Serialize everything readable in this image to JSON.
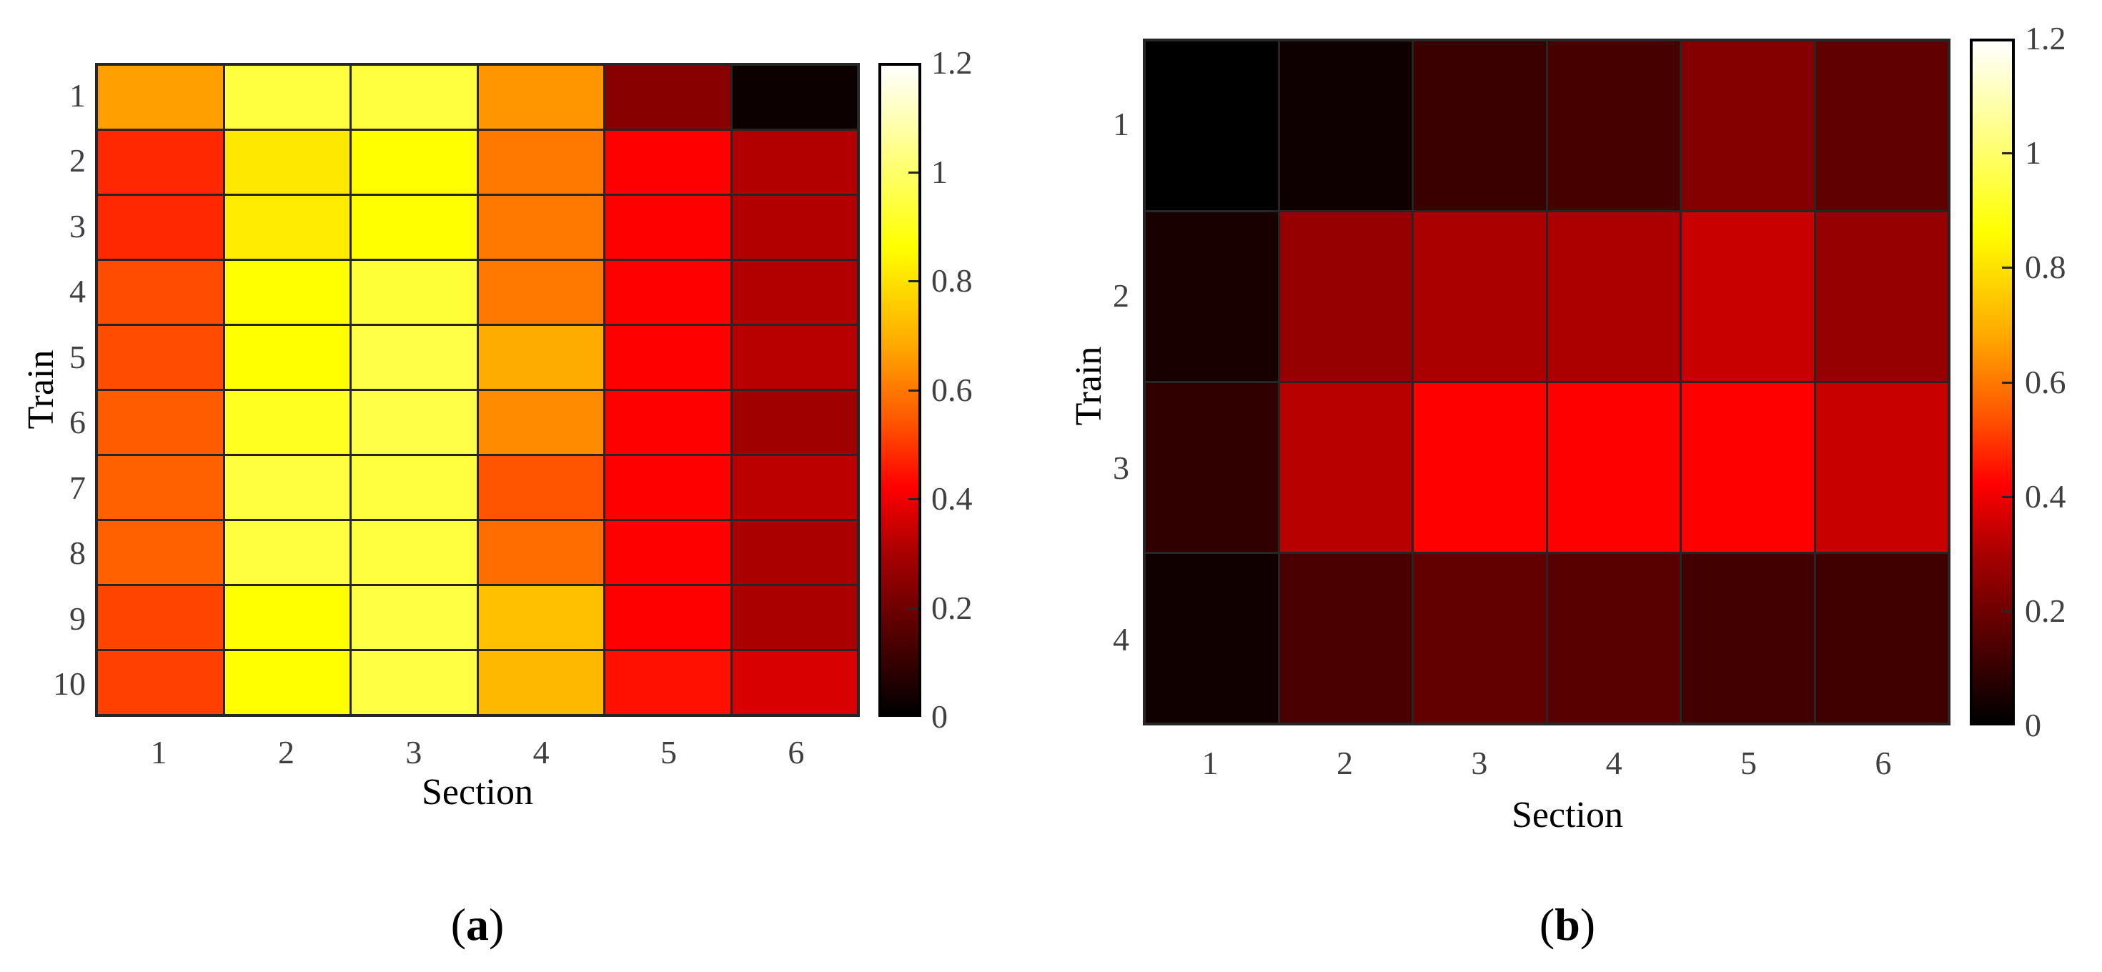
{
  "panels": [
    {
      "id": "a",
      "caption_open": "(",
      "caption_letter": "a",
      "caption_close": ")",
      "xlabel": "Section",
      "ylabel": "Train",
      "xticks": [
        "1",
        "2",
        "3",
        "4",
        "5",
        "6"
      ],
      "yticks": [
        "1",
        "2",
        "3",
        "4",
        "5",
        "6",
        "7",
        "8",
        "9",
        "10"
      ],
      "colorbar_ticks": [
        "0",
        "0.2",
        "0.4",
        "0.6",
        "0.8",
        "1",
        "1.2"
      ],
      "cell_colors": [
        [
          "#FFA000",
          "#FFFF40",
          "#FFFF40",
          "#FF9600",
          "#880000",
          "#0C0000"
        ],
        [
          "#FF2800",
          "#FFE800",
          "#FFFF00",
          "#FF7800",
          "#FF0000",
          "#B20000"
        ],
        [
          "#FF2800",
          "#FFEC00",
          "#FFFF00",
          "#FF7800",
          "#FF0000",
          "#B20000"
        ],
        [
          "#FF4C00",
          "#FFFF00",
          "#FFFF38",
          "#FF7800",
          "#FF0000",
          "#B20000"
        ],
        [
          "#FF4C00",
          "#FFFF00",
          "#FFFF48",
          "#FFAC00",
          "#FF0000",
          "#B80000"
        ],
        [
          "#FF5C00",
          "#FFFF20",
          "#FFFF48",
          "#FF8C00",
          "#FF0000",
          "#A00000"
        ],
        [
          "#FF6000",
          "#FFFF40",
          "#FFFF40",
          "#FF5400",
          "#FF0000",
          "#BC0000"
        ],
        [
          "#FF6000",
          "#FFFF40",
          "#FFFF40",
          "#FF6C00",
          "#FF0000",
          "#AA0000"
        ],
        [
          "#FF4400",
          "#FFFF00",
          "#FFFF44",
          "#FFC000",
          "#FF0000",
          "#AA0000"
        ],
        [
          "#FF4000",
          "#FFFF00",
          "#FFFF44",
          "#FFB800",
          "#FF1000",
          "#D80000"
        ]
      ]
    },
    {
      "id": "b",
      "caption_open": "(",
      "caption_letter": "b",
      "caption_close": ")",
      "xlabel": "Section",
      "ylabel": "Train",
      "xticks": [
        "1",
        "2",
        "3",
        "4",
        "5",
        "6"
      ],
      "yticks": [
        "1",
        "2",
        "3",
        "4"
      ],
      "colorbar_ticks": [
        "0",
        "0.2",
        "0.4",
        "0.6",
        "0.8",
        "1",
        "1.2"
      ],
      "cell_colors": [
        [
          "#000000",
          "#0E0000",
          "#3A0000",
          "#460000",
          "#840000",
          "#600000"
        ],
        [
          "#180000",
          "#960000",
          "#AA0000",
          "#AC0000",
          "#C80000",
          "#960000"
        ],
        [
          "#300000",
          "#B80000",
          "#FF0000",
          "#FF0000",
          "#FF0000",
          "#C80000"
        ],
        [
          "#100000",
          "#4A0000",
          "#620000",
          "#580000",
          "#420000",
          "#400000"
        ]
      ]
    }
  ],
  "chart_data": [
    {
      "type": "heatmap",
      "title": "(a)",
      "xlabel": "Section",
      "ylabel": "Train",
      "x": [
        1,
        2,
        3,
        4,
        5,
        6
      ],
      "y": [
        1,
        2,
        3,
        4,
        5,
        6,
        7,
        8,
        9,
        10
      ],
      "colormap": "hot",
      "clim": [
        0,
        1.2
      ],
      "colorbar_ticks": [
        0,
        0.2,
        0.4,
        0.6,
        0.8,
        1,
        1.2
      ],
      "values": [
        [
          0.73,
          0.98,
          0.98,
          0.71,
          0.24,
          0.02
        ],
        [
          0.52,
          0.86,
          0.9,
          0.66,
          0.45,
          0.31
        ],
        [
          0.52,
          0.87,
          0.9,
          0.66,
          0.45,
          0.31
        ],
        [
          0.58,
          0.9,
          0.97,
          0.66,
          0.45,
          0.31
        ],
        [
          0.58,
          0.9,
          0.98,
          0.76,
          0.45,
          0.33
        ],
        [
          0.61,
          0.94,
          0.98,
          0.7,
          0.45,
          0.28
        ],
        [
          0.62,
          0.98,
          0.98,
          0.6,
          0.45,
          0.33
        ],
        [
          0.62,
          0.98,
          0.98,
          0.64,
          0.45,
          0.3
        ],
        [
          0.57,
          0.9,
          0.98,
          0.79,
          0.45,
          0.3
        ],
        [
          0.56,
          0.9,
          0.98,
          0.77,
          0.48,
          0.38
        ]
      ],
      "grid": true
    },
    {
      "type": "heatmap",
      "title": "(b)",
      "xlabel": "Section",
      "ylabel": "Train",
      "x": [
        1,
        2,
        3,
        4,
        5,
        6
      ],
      "y": [
        1,
        2,
        3,
        4
      ],
      "colormap": "hot",
      "clim": [
        0,
        1.2
      ],
      "colorbar_ticks": [
        0,
        0.2,
        0.4,
        0.6,
        0.8,
        1,
        1.2
      ],
      "values": [
        [
          0.0,
          0.02,
          0.1,
          0.12,
          0.23,
          0.17
        ],
        [
          0.04,
          0.26,
          0.3,
          0.3,
          0.35,
          0.26
        ],
        [
          0.08,
          0.32,
          0.45,
          0.45,
          0.45,
          0.35
        ],
        [
          0.03,
          0.13,
          0.17,
          0.15,
          0.12,
          0.11
        ]
      ],
      "grid": true
    }
  ]
}
